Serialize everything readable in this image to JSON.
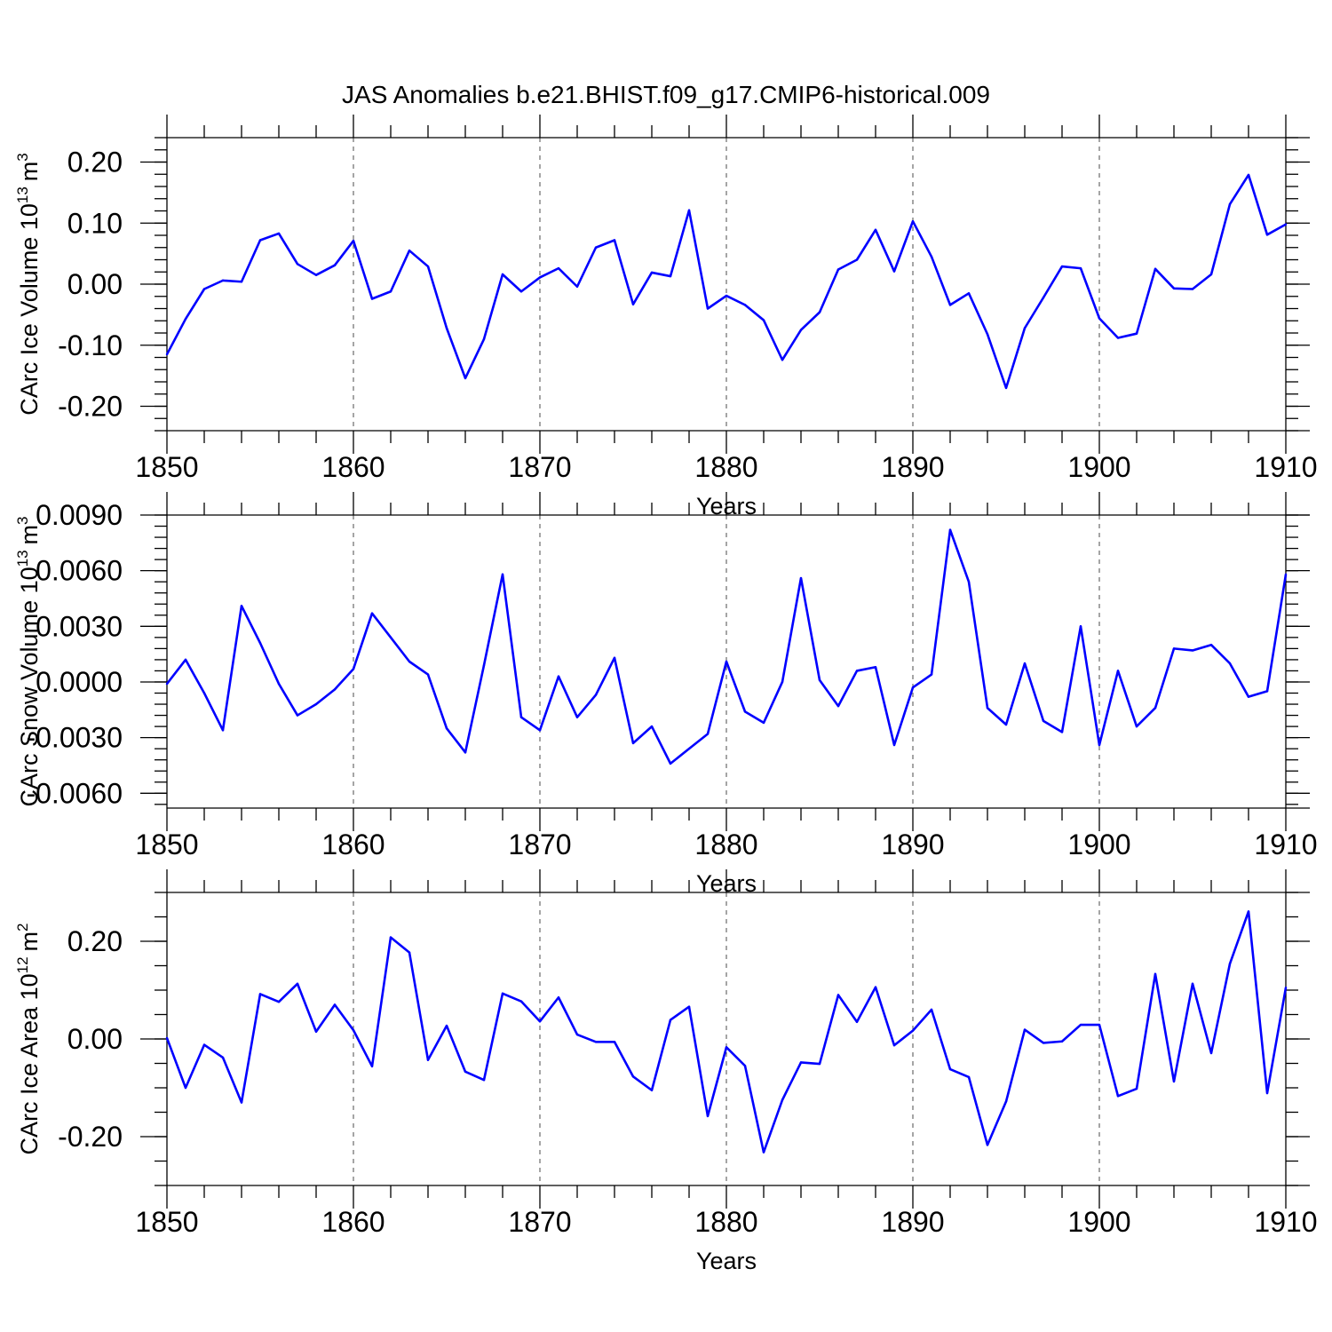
{
  "figure_title": "JAS Anomalies b.e21.BHIST.f09_g17.CMIP6-historical.009",
  "colors": {
    "line": "#0000ff",
    "axis": "#000000"
  },
  "chart_data": [
    {
      "type": "line",
      "title": "JAS Anomalies b.e21.BHIST.f09_g17.CMIP6-historical.009",
      "xlabel": "Years",
      "ylabel_main": "CArc Ice Volume 10",
      "ylabel_exp": "13",
      "ylabel_unit": "m",
      "ylabel_unit_exp": "3",
      "xlim": [
        1850,
        1910
      ],
      "ylim": [
        -0.24,
        0.24
      ],
      "xticks": [
        1850,
        1860,
        1870,
        1880,
        1890,
        1900,
        1910
      ],
      "xtick_labels": [
        "1850",
        "1860",
        "1870",
        "1880",
        "1890",
        "1900",
        "1910"
      ],
      "yticks": [
        -0.2,
        -0.1,
        0.0,
        0.1,
        0.2
      ],
      "ytick_labels": [
        "-0.20",
        "-0.10",
        "0.00",
        "0.10",
        "0.20"
      ],
      "y_minor_step": 0.02,
      "grid_x": true,
      "x": [
        1850,
        1851,
        1852,
        1853,
        1854,
        1855,
        1856,
        1857,
        1858,
        1859,
        1860,
        1861,
        1862,
        1863,
        1864,
        1865,
        1866,
        1867,
        1868,
        1869,
        1870,
        1871,
        1872,
        1873,
        1874,
        1875,
        1876,
        1877,
        1878,
        1879,
        1880,
        1881,
        1882,
        1883,
        1884,
        1885,
        1886,
        1887,
        1888,
        1889,
        1890,
        1891,
        1892,
        1893,
        1894,
        1895,
        1896,
        1897,
        1898,
        1899,
        1900,
        1901,
        1902,
        1903,
        1904,
        1905,
        1906,
        1907,
        1908,
        1909,
        1910
      ],
      "values": [
        -0.115,
        -0.057,
        -0.008,
        0.006,
        0.004,
        0.072,
        0.083,
        0.033,
        0.015,
        0.031,
        0.071,
        -0.024,
        -0.012,
        0.055,
        0.029,
        -0.072,
        -0.154,
        -0.09,
        0.016,
        -0.012,
        0.011,
        0.026,
        -0.004,
        0.06,
        0.072,
        -0.033,
        0.019,
        0.013,
        0.121,
        -0.04,
        -0.019,
        -0.034,
        -0.059,
        -0.124,
        -0.075,
        -0.046,
        0.024,
        0.04,
        0.089,
        0.021,
        0.103,
        0.045,
        -0.034,
        -0.015,
        -0.082,
        -0.17,
        -0.072,
        -0.022,
        0.029,
        0.026,
        -0.056,
        -0.088,
        -0.081,
        0.025,
        -0.007,
        -0.008,
        0.016,
        0.131,
        0.179,
        0.081,
        0.098
      ]
    },
    {
      "type": "line",
      "title": "",
      "xlabel": "Years",
      "ylabel_main": "CArc Snow Volume 10",
      "ylabel_exp": "13",
      "ylabel_unit": "m",
      "ylabel_unit_exp": "3",
      "xlim": [
        1850,
        1910
      ],
      "ylim": [
        -0.0068,
        0.009
      ],
      "xticks": [
        1850,
        1860,
        1870,
        1880,
        1890,
        1900,
        1910
      ],
      "xtick_labels": [
        "1850",
        "1860",
        "1870",
        "1880",
        "1890",
        "1900",
        "1910"
      ],
      "yticks": [
        -0.006,
        -0.003,
        0.0,
        0.003,
        0.006,
        0.009
      ],
      "ytick_labels": [
        "-0.0060",
        "-0.0030",
        "0.0000",
        "0.0030",
        "0.0060",
        "0.0090"
      ],
      "y_minor_step": 0.0006,
      "grid_x": true,
      "x": [
        1850,
        1851,
        1852,
        1853,
        1854,
        1855,
        1856,
        1857,
        1858,
        1859,
        1860,
        1861,
        1862,
        1863,
        1864,
        1865,
        1866,
        1867,
        1868,
        1869,
        1870,
        1871,
        1872,
        1873,
        1874,
        1875,
        1876,
        1877,
        1878,
        1879,
        1880,
        1881,
        1882,
        1883,
        1884,
        1885,
        1886,
        1887,
        1888,
        1889,
        1890,
        1891,
        1892,
        1893,
        1894,
        1895,
        1896,
        1897,
        1898,
        1899,
        1900,
        1901,
        1902,
        1903,
        1904,
        1905,
        1906,
        1907,
        1908,
        1909,
        1910
      ],
      "values": [
        -0.0001,
        0.0012,
        -0.0006,
        -0.0026,
        0.0041,
        0.0021,
        -0.0001,
        -0.0018,
        -0.0012,
        -0.0004,
        0.0007,
        0.0037,
        0.0024,
        0.0011,
        0.0004,
        -0.0025,
        -0.0038,
        0.0009,
        0.0058,
        -0.0019,
        -0.0026,
        0.0003,
        -0.0019,
        -0.0007,
        0.0013,
        -0.0033,
        -0.0024,
        -0.0044,
        -0.0036,
        -0.0028,
        0.0011,
        -0.0016,
        -0.0022,
        -0.0,
        0.0056,
        0.0001,
        -0.0013,
        0.0006,
        0.0008,
        -0.0034,
        -0.0003,
        0.0004,
        0.0082,
        0.0054,
        -0.0014,
        -0.0023,
        0.001,
        -0.0021,
        -0.0027,
        0.003,
        -0.0034,
        0.0006,
        -0.0024,
        -0.0014,
        0.0018,
        0.0017,
        0.002,
        0.001,
        -0.0008,
        -0.0005,
        0.0058
      ]
    },
    {
      "type": "line",
      "title": "",
      "xlabel": "Years",
      "ylabel_main": "CArc Ice Area 10",
      "ylabel_exp": "12",
      "ylabel_unit": "m",
      "ylabel_unit_exp": "2",
      "xlim": [
        1850,
        1910
      ],
      "ylim": [
        -0.3,
        0.3
      ],
      "xticks": [
        1850,
        1860,
        1870,
        1880,
        1890,
        1900,
        1910
      ],
      "xtick_labels": [
        "1850",
        "1860",
        "1870",
        "1880",
        "1890",
        "1900",
        "1910"
      ],
      "yticks": [
        -0.2,
        0.0,
        0.2
      ],
      "ytick_labels": [
        "-0.20",
        "0.00",
        "0.20"
      ],
      "y_minor_step": 0.05,
      "grid_x": true,
      "x": [
        1850,
        1851,
        1852,
        1853,
        1854,
        1855,
        1856,
        1857,
        1858,
        1859,
        1860,
        1861,
        1862,
        1863,
        1864,
        1865,
        1866,
        1867,
        1868,
        1869,
        1870,
        1871,
        1872,
        1873,
        1874,
        1875,
        1876,
        1877,
        1878,
        1879,
        1880,
        1881,
        1882,
        1883,
        1884,
        1885,
        1886,
        1887,
        1888,
        1889,
        1890,
        1891,
        1892,
        1893,
        1894,
        1895,
        1896,
        1897,
        1898,
        1899,
        1900,
        1901,
        1902,
        1903,
        1904,
        1905,
        1906,
        1907,
        1908,
        1909,
        1910
      ],
      "values": [
        0.002,
        -0.1,
        -0.012,
        -0.038,
        -0.13,
        0.092,
        0.076,
        0.113,
        0.015,
        0.07,
        0.018,
        -0.056,
        0.208,
        0.177,
        -0.043,
        0.027,
        -0.067,
        -0.084,
        0.093,
        0.077,
        0.036,
        0.085,
        0.009,
        -0.006,
        -0.006,
        -0.077,
        -0.105,
        0.039,
        0.066,
        -0.158,
        -0.017,
        -0.055,
        -0.232,
        -0.125,
        -0.048,
        -0.051,
        0.09,
        0.035,
        0.106,
        -0.013,
        0.017,
        0.06,
        -0.062,
        -0.078,
        -0.217,
        -0.128,
        0.019,
        -0.008,
        -0.005,
        0.029,
        0.029,
        -0.117,
        -0.102,
        0.133,
        -0.087,
        0.113,
        -0.029,
        0.154,
        0.261,
        -0.111,
        0.105
      ]
    }
  ]
}
